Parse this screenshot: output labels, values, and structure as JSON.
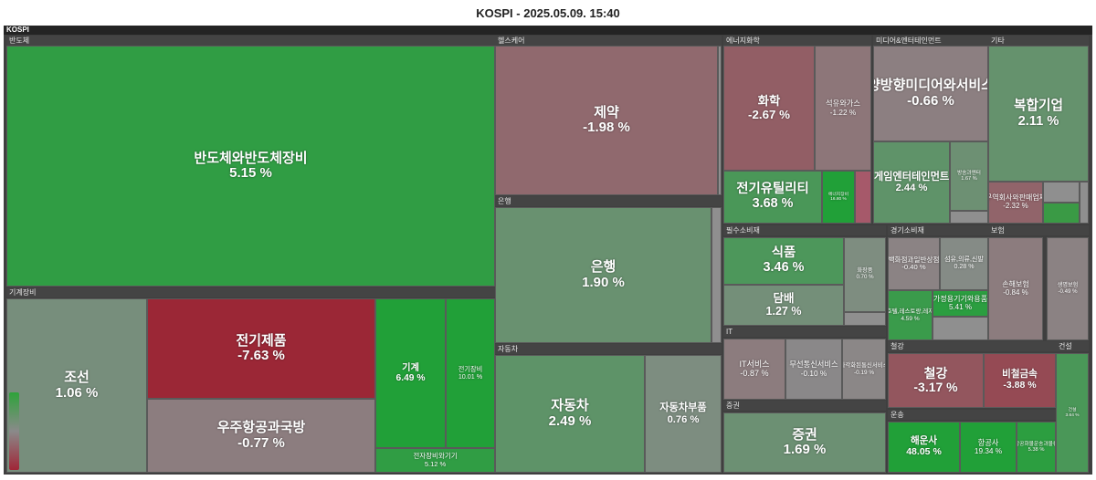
{
  "title": "KOSPI - 2025.05.09. 15:40",
  "root_label": "KOSPI",
  "colors": {
    "background": "#3f3f3f",
    "header": "#444444",
    "positive": "#21a038",
    "negative": "#9b2736",
    "neutral": "#8a8a8a"
  },
  "chart_data": {
    "type": "treemap",
    "title": "KOSPI - 2025.05.09. 15:40",
    "root": "KOSPI",
    "unit": "%",
    "sectors": [
      {
        "name": "반도체",
        "industries": [
          {
            "name": "반도체와반도체장비",
            "change": 5.15,
            "label": "5.15 %"
          }
        ]
      },
      {
        "name": "기계장비",
        "industries": [
          {
            "name": "조선",
            "change": 1.06,
            "label": "1.06 %"
          },
          {
            "name": "전기제품",
            "change": -7.63,
            "label": "-7.63 %"
          },
          {
            "name": "우주항공과국방",
            "change": -0.77,
            "label": "-0.77 %"
          },
          {
            "name": "기계",
            "change": 6.49,
            "label": "6.49 %"
          },
          {
            "name": "전기장비",
            "change": 10.01,
            "label": "10.01 %"
          },
          {
            "name": "전자장비와기기",
            "change": 5.12,
            "label": "5.12 %"
          }
        ]
      },
      {
        "name": "헬스케어",
        "industries": [
          {
            "name": "제약",
            "change": -1.98,
            "label": "-1.98 %"
          }
        ]
      },
      {
        "name": "은행",
        "industries": [
          {
            "name": "은행",
            "change": 1.9,
            "label": "1.90 %"
          }
        ]
      },
      {
        "name": "자동차",
        "industries": [
          {
            "name": "자동차",
            "change": 2.49,
            "label": "2.49 %"
          },
          {
            "name": "자동차부품",
            "change": 0.76,
            "label": "0.76 %"
          }
        ]
      },
      {
        "name": "에너지화학",
        "industries": [
          {
            "name": "화학",
            "change": -2.67,
            "label": "-2.67 %"
          },
          {
            "name": "석유와가스",
            "change": -1.22,
            "label": "-1.22 %"
          },
          {
            "name": "전기유틸리티",
            "change": 3.68,
            "label": "3.68 %"
          },
          {
            "name": "에너지장비",
            "change": 16.8,
            "label": "16.80 %"
          }
        ]
      },
      {
        "name": "미디어&엔터테인먼트",
        "industries": [
          {
            "name": "양방향미디어와서비스",
            "change": -0.66,
            "label": "-0.66 %"
          },
          {
            "name": "게임엔터테인먼트",
            "change": 2.44,
            "label": "2.44 %"
          },
          {
            "name": "방송과엔터",
            "change": 1.67,
            "label": "1.67 %"
          }
        ]
      },
      {
        "name": "기타",
        "industries": [
          {
            "name": "복합기업",
            "change": 2.11,
            "label": "2.11 %"
          },
          {
            "name": "무역회사와판매업체",
            "change": -2.32,
            "label": "-2.32 %"
          }
        ]
      },
      {
        "name": "필수소비재",
        "industries": [
          {
            "name": "식품",
            "change": 3.46,
            "label": "3.46 %"
          },
          {
            "name": "화장품",
            "change": 0.7,
            "label": "0.70 %"
          },
          {
            "name": "담배",
            "change": 1.27,
            "label": "1.27 %"
          }
        ]
      },
      {
        "name": "경기소비재",
        "industries": [
          {
            "name": "백화점과일반상점",
            "change": -0.4,
            "label": "-0.40 %"
          },
          {
            "name": "호텔,레스토랑,레저",
            "change": 4.59,
            "label": "4.59 %"
          },
          {
            "name": "섬유,의류,신발",
            "change": 0.28,
            "label": "0.28 %"
          },
          {
            "name": "가정용기기와용품",
            "change": 5.41,
            "label": "5.41 %"
          }
        ]
      },
      {
        "name": "보험",
        "industries": [
          {
            "name": "손해보험",
            "change": -0.84,
            "label": "-0.84 %"
          },
          {
            "name": "생명보험",
            "change": -0.49,
            "label": "-0.49 %"
          }
        ]
      },
      {
        "name": "IT",
        "industries": [
          {
            "name": "IT서비스",
            "change": -0.87,
            "label": "-0.87 %"
          },
          {
            "name": "무선통신서비스",
            "change": -0.1,
            "label": "-0.10 %"
          },
          {
            "name": "다각화된통신서비스",
            "change": -0.19,
            "label": "-0.19 %"
          }
        ]
      },
      {
        "name": "증권",
        "industries": [
          {
            "name": "증권",
            "change": 1.69,
            "label": "1.69 %"
          }
        ]
      },
      {
        "name": "철강",
        "industries": [
          {
            "name": "철강",
            "change": -3.17,
            "label": "-3.17 %"
          },
          {
            "name": "비철금속",
            "change": -3.88,
            "label": "-3.88 %"
          }
        ]
      },
      {
        "name": "건설",
        "industries": [
          {
            "name": "건설",
            "change": 3.64,
            "label": "3.64 %"
          }
        ]
      },
      {
        "name": "운송",
        "industries": [
          {
            "name": "해운사",
            "change": 48.05,
            "label": "48.05 %"
          },
          {
            "name": "항공사",
            "change": 19.34,
            "label": "19.34 %"
          },
          {
            "name": "항공화물운송과물류",
            "change": 5.38,
            "label": "5.38 %"
          }
        ]
      }
    ]
  }
}
